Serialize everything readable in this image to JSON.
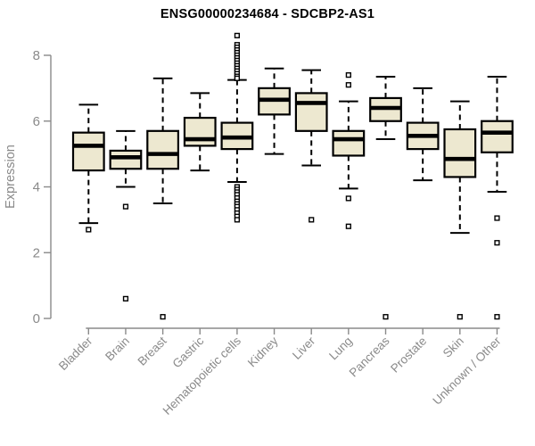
{
  "chart_data": {
    "type": "boxplot",
    "title": "ENSG00000234684 - SDCBP2-AS1",
    "ylabel": "Expression",
    "xlabel": "",
    "ylim": [
      0,
      8.7
    ],
    "yticks": [
      0,
      2,
      4,
      6,
      8
    ],
    "x_label_rotation_deg": 45,
    "grid": false,
    "legend": "none",
    "colors": {
      "box_fill": "#EDE8D0",
      "box_stroke": "#000000",
      "median_stroke": "#000000",
      "whisker_stroke": "#000000",
      "outlier_stroke": "#000000",
      "outlier_fill": "#ffffff",
      "axis": "#8a8a8a",
      "tick_label": "#8a8a8a",
      "title": "#000000",
      "background": "#ffffff"
    },
    "categories": [
      "Bladder",
      "Brain",
      "Breast",
      "Gastric",
      "Hematopoietic cells",
      "Kidney",
      "Liver",
      "Lung",
      "Pancreas",
      "Prostate",
      "Skin",
      "Unknown / Other"
    ],
    "boxes": [
      {
        "category": "Bladder",
        "whisker_low": 2.9,
        "q1": 4.5,
        "median": 5.25,
        "q3": 5.65,
        "whisker_high": 6.5,
        "outliers": [
          2.7
        ]
      },
      {
        "category": "Brain",
        "whisker_low": 4.0,
        "q1": 4.55,
        "median": 4.9,
        "q3": 5.1,
        "whisker_high": 5.7,
        "outliers": [
          3.4,
          0.6
        ]
      },
      {
        "category": "Breast",
        "whisker_low": 3.5,
        "q1": 4.55,
        "median": 5.0,
        "q3": 5.7,
        "whisker_high": 7.3,
        "outliers": [
          0.05
        ]
      },
      {
        "category": "Gastric",
        "whisker_low": 4.5,
        "q1": 5.25,
        "median": 5.45,
        "q3": 6.1,
        "whisker_high": 6.85,
        "outliers": []
      },
      {
        "category": "Hematopoietic cells",
        "whisker_low": 4.15,
        "q1": 5.15,
        "median": 5.5,
        "q3": 5.95,
        "whisker_high": 7.25,
        "outliers": [
          8.6,
          8.32,
          8.24,
          8.16,
          8.08,
          8.0,
          7.92,
          7.84,
          7.76,
          7.68,
          7.6,
          7.52,
          7.44,
          7.36,
          7.3,
          4.0,
          3.92,
          3.84,
          3.76,
          3.66,
          3.56,
          3.48,
          3.4,
          3.3,
          3.2,
          3.1,
          3.0
        ]
      },
      {
        "category": "Kidney",
        "whisker_low": 5.0,
        "q1": 6.2,
        "median": 6.65,
        "q3": 7.0,
        "whisker_high": 7.6,
        "outliers": []
      },
      {
        "category": "Liver",
        "whisker_low": 4.65,
        "q1": 5.7,
        "median": 6.55,
        "q3": 6.85,
        "whisker_high": 7.55,
        "outliers": [
          3.0
        ]
      },
      {
        "category": "Lung",
        "whisker_low": 3.95,
        "q1": 4.95,
        "median": 5.45,
        "q3": 5.7,
        "whisker_high": 6.6,
        "outliers": [
          7.4,
          7.1,
          3.65,
          2.8
        ]
      },
      {
        "category": "Pancreas",
        "whisker_low": 5.45,
        "q1": 6.0,
        "median": 6.4,
        "q3": 6.7,
        "whisker_high": 7.35,
        "outliers": [
          0.05
        ]
      },
      {
        "category": "Prostate",
        "whisker_low": 4.2,
        "q1": 5.15,
        "median": 5.55,
        "q3": 5.95,
        "whisker_high": 7.0,
        "outliers": []
      },
      {
        "category": "Skin",
        "whisker_low": 2.6,
        "q1": 4.3,
        "median": 4.85,
        "q3": 5.75,
        "whisker_high": 6.6,
        "outliers": [
          0.05
        ]
      },
      {
        "category": "Unknown / Other",
        "whisker_low": 3.85,
        "q1": 5.05,
        "median": 5.65,
        "q3": 6.0,
        "whisker_high": 7.35,
        "outliers": [
          3.05,
          2.3,
          0.05
        ]
      }
    ]
  }
}
